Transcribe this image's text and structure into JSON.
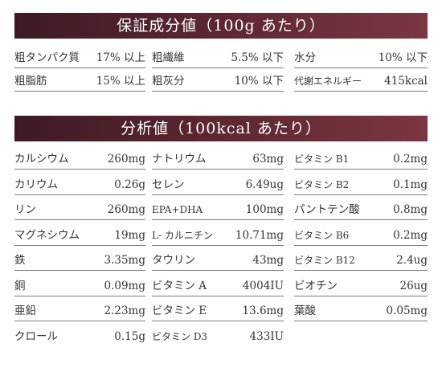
{
  "guarantee": {
    "title": "保証成分値（100g あたり）",
    "rows": [
      [
        {
          "label": "粗タンパク質",
          "value": "17% 以上"
        },
        {
          "label": "粗繊維",
          "value": "5.5% 以下"
        },
        {
          "label": "水分",
          "value": "10% 以下"
        }
      ],
      [
        {
          "label": "粗脂肪",
          "value": "15% 以上"
        },
        {
          "label": "粗灰分",
          "value": "10% 以下"
        },
        {
          "label": "代謝エネルギー",
          "value": "415kcal"
        }
      ]
    ]
  },
  "analysis": {
    "title": "分析値（100kcal あたり）",
    "rows": [
      [
        {
          "label": "カルシウム",
          "value": "260mg"
        },
        {
          "label": "ナトリウム",
          "value": "63mg"
        },
        {
          "label": "ビタミン B1",
          "value": "0.2mg"
        }
      ],
      [
        {
          "label": "カリウム",
          "value": "0.26g"
        },
        {
          "label": "セレン",
          "value": "6.49ug"
        },
        {
          "label": "ビタミン B2",
          "value": "0.1mg"
        }
      ],
      [
        {
          "label": "リン",
          "value": "260mg"
        },
        {
          "label": "EPA+DHA",
          "value": "100mg"
        },
        {
          "label": "パントテン酸",
          "value": "0.8mg"
        }
      ],
      [
        {
          "label": "マグネシウム",
          "value": "19mg"
        },
        {
          "label": "L- カルニチン",
          "value": "10.71mg"
        },
        {
          "label": "ビタミン B6",
          "value": "0.2mg"
        }
      ],
      [
        {
          "label": "鉄",
          "value": "3.35mg"
        },
        {
          "label": "タウリン",
          "value": "43mg"
        },
        {
          "label": "ビタミン B12",
          "value": "2.4ug"
        }
      ],
      [
        {
          "label": "銅",
          "value": "0.09mg"
        },
        {
          "label": "ビタミン A",
          "value": "4004IU"
        },
        {
          "label": "ビオチン",
          "value": "26ug"
        }
      ],
      [
        {
          "label": "亜鉛",
          "value": "2.23mg"
        },
        {
          "label": "ビタミン E",
          "value": "13.6mg"
        },
        {
          "label": "葉酸",
          "value": "0.05mg"
        }
      ],
      [
        {
          "label": "クロール",
          "value": "0.15g"
        },
        {
          "label": "ビタミン D3",
          "value": "433IU"
        },
        null
      ]
    ]
  }
}
